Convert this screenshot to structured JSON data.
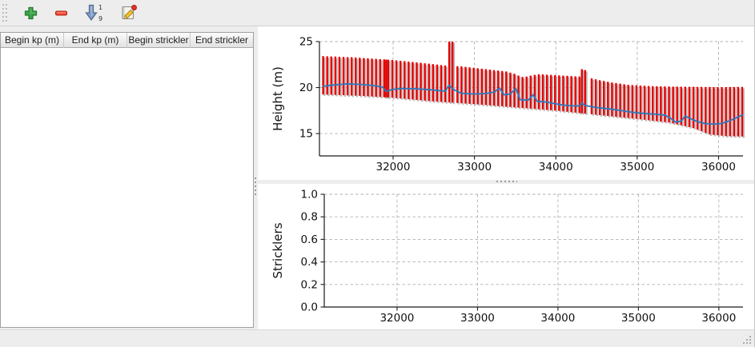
{
  "toolbar": {
    "add_button": {
      "icon": "plus-icon"
    },
    "remove_button": {
      "icon": "minus-icon"
    },
    "sort_button": {
      "icon": "sort-numeric-icon",
      "digit_top": "1",
      "digit_bottom": "9"
    },
    "edit_button": {
      "icon": "edit-icon"
    }
  },
  "table": {
    "columns": [
      {
        "label": "Begin kp (m)"
      },
      {
        "label": "End kp (m)"
      },
      {
        "label": "Begin strickler"
      },
      {
        "label": "End strickler"
      }
    ],
    "rows": []
  },
  "colors": {
    "bar": "#e60000",
    "bar_shadow": "#bcbcbc",
    "line": "#2e79bd",
    "grid": "#b0b0b0",
    "axis": "#1a1a1a"
  },
  "chart_data": [
    {
      "type": "line",
      "title": "",
      "xlabel": "",
      "ylabel": "Height (m)",
      "xlim": [
        31095,
        36300
      ],
      "ylim": [
        12.57,
        25.0
      ],
      "xticks": [
        32000,
        33000,
        34000,
        35000,
        36000
      ],
      "xtick_labels": [
        "32000",
        "33000",
        "34000",
        "35000",
        "36000"
      ],
      "yticks": [
        15,
        20,
        25
      ],
      "ytick_labels": [
        "15",
        "20",
        "25"
      ],
      "grid": true,
      "legend": null,
      "series": [
        {
          "name": "section-extent-bars",
          "style": "vertical-bars",
          "color": "#e60000",
          "bars": [
            [
              31140,
              19.25,
              23.42
            ],
            [
              31190,
              19.23,
              23.4
            ],
            [
              31240,
              19.22,
              23.38
            ],
            [
              31290,
              19.2,
              23.37
            ],
            [
              31340,
              19.18,
              23.35
            ],
            [
              31390,
              19.17,
              23.33
            ],
            [
              31440,
              19.15,
              23.31
            ],
            [
              31490,
              19.13,
              23.3
            ],
            [
              31540,
              19.12,
              23.27
            ],
            [
              31590,
              19.1,
              23.24
            ],
            [
              31640,
              19.08,
              23.21
            ],
            [
              31690,
              19.05,
              23.18
            ],
            [
              31740,
              19.03,
              23.15
            ],
            [
              31790,
              19.0,
              23.12
            ],
            [
              31840,
              18.98,
              23.09
            ],
            [
              31890,
              18.95,
              23.06
            ],
            [
              31915,
              18.94,
              23.04
            ],
            [
              31940,
              18.93,
              23.03
            ],
            [
              31990,
              18.9,
              23.0
            ],
            [
              32040,
              18.86,
              22.96
            ],
            [
              32090,
              18.82,
              22.91
            ],
            [
              32140,
              18.78,
              22.87
            ],
            [
              32190,
              18.74,
              22.82
            ],
            [
              32240,
              18.7,
              22.78
            ],
            [
              32290,
              18.66,
              22.73
            ],
            [
              32340,
              18.62,
              22.69
            ],
            [
              32390,
              18.58,
              22.64
            ],
            [
              32440,
              18.54,
              22.6
            ],
            [
              32490,
              18.5,
              22.55
            ],
            [
              32540,
              18.47,
              22.5
            ],
            [
              32590,
              18.44,
              22.45
            ],
            [
              32640,
              18.41,
              22.4
            ],
            [
              32690,
              18.38,
              25.0
            ],
            [
              32730,
              18.36,
              25.0
            ],
            [
              32790,
              18.32,
              22.32
            ],
            [
              32840,
              18.29,
              22.3
            ],
            [
              32890,
              18.26,
              22.25
            ],
            [
              32940,
              18.23,
              22.2
            ],
            [
              32990,
              18.2,
              22.15
            ],
            [
              33040,
              18.17,
              22.1
            ],
            [
              33090,
              18.13,
              22.05
            ],
            [
              33140,
              18.1,
              22.0
            ],
            [
              33190,
              18.06,
              21.95
            ],
            [
              33240,
              18.03,
              21.9
            ],
            [
              33290,
              17.99,
              21.85
            ],
            [
              33340,
              17.96,
              21.8
            ],
            [
              33390,
              17.92,
              21.75
            ],
            [
              33440,
              17.89,
              21.62
            ],
            [
              33490,
              17.85,
              21.5
            ],
            [
              33540,
              17.82,
              21.3
            ],
            [
              33590,
              17.78,
              21.15
            ],
            [
              33640,
              17.75,
              21.2
            ],
            [
              33690,
              17.71,
              21.3
            ],
            [
              33740,
              17.68,
              21.38
            ],
            [
              33790,
              17.64,
              21.45
            ],
            [
              33840,
              17.61,
              21.43
            ],
            [
              33890,
              17.57,
              21.4
            ],
            [
              33940,
              17.54,
              21.38
            ],
            [
              33990,
              17.5,
              21.35
            ],
            [
              34040,
              17.46,
              21.32
            ],
            [
              34090,
              17.41,
              21.3
            ],
            [
              34140,
              17.37,
              21.28
            ],
            [
              34190,
              17.32,
              21.25
            ],
            [
              34240,
              17.28,
              21.22
            ],
            [
              34290,
              17.23,
              21.2
            ],
            [
              34320,
              17.21,
              22.0
            ],
            [
              34360,
              17.17,
              21.9
            ],
            [
              34440,
              17.1,
              21.0
            ],
            [
              34490,
              17.05,
              20.9
            ],
            [
              34540,
              17.0,
              20.8
            ],
            [
              34590,
              16.96,
              20.72
            ],
            [
              34640,
              16.91,
              20.63
            ],
            [
              34690,
              16.87,
              20.55
            ],
            [
              34740,
              16.82,
              20.49
            ],
            [
              34790,
              16.78,
              20.43
            ],
            [
              34840,
              16.73,
              20.36
            ],
            [
              34890,
              16.69,
              20.3
            ],
            [
              34940,
              16.64,
              20.27
            ],
            [
              34990,
              16.6,
              20.25
            ],
            [
              35040,
              16.55,
              20.22
            ],
            [
              35090,
              16.5,
              20.2
            ],
            [
              35140,
              16.45,
              20.17
            ],
            [
              35190,
              16.4,
              20.15
            ],
            [
              35240,
              16.35,
              20.14
            ],
            [
              35290,
              16.3,
              20.13
            ],
            [
              35340,
              16.25,
              20.12
            ],
            [
              35390,
              16.2,
              20.11
            ],
            [
              35440,
              16.1,
              20.1
            ],
            [
              35490,
              16.0,
              20.1
            ],
            [
              35540,
              15.9,
              20.09
            ],
            [
              35590,
              15.8,
              20.09
            ],
            [
              35640,
              15.7,
              20.08
            ],
            [
              35690,
              15.6,
              20.08
            ],
            [
              35740,
              15.43,
              20.07
            ],
            [
              35790,
              15.25,
              20.07
            ],
            [
              35840,
              15.08,
              20.06
            ],
            [
              35890,
              14.9,
              20.06
            ],
            [
              35940,
              14.86,
              20.05
            ],
            [
              35990,
              14.81,
              20.05
            ],
            [
              36040,
              14.77,
              20.05
            ],
            [
              36090,
              14.72,
              20.05
            ],
            [
              36140,
              14.71,
              20.06
            ],
            [
              36190,
              14.7,
              20.06
            ],
            [
              36240,
              14.69,
              20.07
            ],
            [
              36290,
              14.68,
              20.07
            ]
          ]
        },
        {
          "name": "mean-height-line",
          "style": "line",
          "color": "#2e79bd",
          "points": [
            [
              31140,
              20.15
            ],
            [
              31260,
              20.27
            ],
            [
              31430,
              20.4
            ],
            [
              31620,
              20.33
            ],
            [
              31800,
              20.17
            ],
            [
              31870,
              20.05
            ],
            [
              31915,
              19.58
            ],
            [
              31990,
              19.8
            ],
            [
              32120,
              19.9
            ],
            [
              32300,
              19.85
            ],
            [
              32490,
              19.73
            ],
            [
              32640,
              19.62
            ],
            [
              32690,
              20.25
            ],
            [
              32740,
              19.8
            ],
            [
              32840,
              19.38
            ],
            [
              32990,
              19.3
            ],
            [
              33140,
              19.35
            ],
            [
              33240,
              19.5
            ],
            [
              33310,
              19.95
            ],
            [
              33360,
              19.22
            ],
            [
              33440,
              19.3
            ],
            [
              33510,
              19.9
            ],
            [
              33560,
              18.7
            ],
            [
              33660,
              18.62
            ],
            [
              33720,
              19.22
            ],
            [
              33770,
              18.5
            ],
            [
              33890,
              18.42
            ],
            [
              33990,
              18.25
            ],
            [
              34090,
              18.1
            ],
            [
              34190,
              18.02
            ],
            [
              34290,
              18.0
            ],
            [
              34320,
              18.3
            ],
            [
              34360,
              18.05
            ],
            [
              34490,
              17.85
            ],
            [
              34640,
              17.7
            ],
            [
              34790,
              17.52
            ],
            [
              34940,
              17.32
            ],
            [
              35090,
              17.18
            ],
            [
              35240,
              17.1
            ],
            [
              35340,
              17.0
            ],
            [
              35420,
              16.6
            ],
            [
              35470,
              16.25
            ],
            [
              35540,
              16.35
            ],
            [
              35590,
              16.9
            ],
            [
              35660,
              16.6
            ],
            [
              35740,
              16.3
            ],
            [
              35840,
              16.08
            ],
            [
              35940,
              16.02
            ],
            [
              36040,
              16.1
            ],
            [
              36140,
              16.4
            ],
            [
              36240,
              16.8
            ],
            [
              36290,
              17.0
            ]
          ]
        }
      ]
    },
    {
      "type": "line",
      "title": "",
      "xlabel": "",
      "ylabel": "Stricklers",
      "xlim": [
        31095,
        36300
      ],
      "ylim": [
        0.0,
        1.0
      ],
      "xticks": [
        32000,
        33000,
        34000,
        35000,
        36000
      ],
      "xtick_labels": [
        "32000",
        "33000",
        "34000",
        "35000",
        "36000"
      ],
      "yticks": [
        0.0,
        0.2,
        0.4,
        0.6,
        0.8,
        1.0
      ],
      "ytick_labels": [
        "0.0",
        "0.2",
        "0.4",
        "0.6",
        "0.8",
        "1.0"
      ],
      "grid": true,
      "legend": null,
      "series": []
    }
  ]
}
